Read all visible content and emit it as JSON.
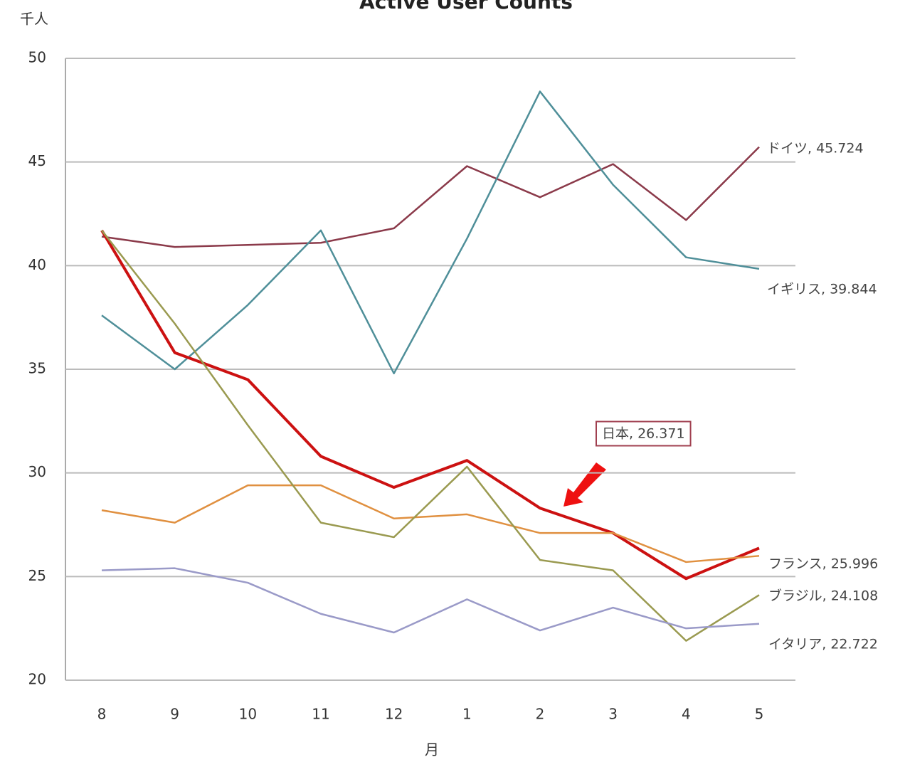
{
  "chart_data": {
    "type": "line",
    "title": "Active User Counts",
    "y_label": "千人",
    "x_label": "月",
    "categories": [
      "8",
      "9",
      "10",
      "11",
      "12",
      "1",
      "2",
      "3",
      "4",
      "5"
    ],
    "ylim": [
      20,
      50
    ],
    "yticks": [
      20,
      25,
      30,
      35,
      40,
      45,
      50
    ],
    "grid": true,
    "series": [
      {
        "name": "ドイツ",
        "color": "#8b3a4a",
        "values": [
          41.4,
          40.9,
          41.0,
          41.1,
          41.8,
          44.8,
          43.3,
          44.9,
          42.2,
          45.724
        ],
        "end_label": "ドイツ, 45.724"
      },
      {
        "name": "イギリス",
        "color": "#4f8f99",
        "values": [
          37.6,
          35.0,
          38.1,
          41.7,
          34.8,
          41.3,
          48.4,
          43.9,
          40.4,
          39.844
        ],
        "end_label": "イギリス, 39.844"
      },
      {
        "name": "日本",
        "color": "#cc1111",
        "values": [
          41.7,
          35.8,
          34.5,
          30.8,
          29.3,
          30.6,
          28.3,
          27.1,
          24.9,
          26.371
        ],
        "end_label": "日本, 26.371"
      },
      {
        "name": "フランス",
        "color": "#e09040",
        "values": [
          28.2,
          27.6,
          29.4,
          29.4,
          27.8,
          28.0,
          27.1,
          27.1,
          25.7,
          25.996
        ],
        "end_label": "フランス, 25.996"
      },
      {
        "name": "ブラジル",
        "color": "#9a9a50",
        "values": [
          41.7,
          37.2,
          32.3,
          27.6,
          26.9,
          30.3,
          25.8,
          25.3,
          21.9,
          24.108
        ],
        "end_label": "ブラジル, 24.108"
      },
      {
        "name": "イタリア",
        "color": "#9a9ac8",
        "values": [
          25.3,
          25.4,
          24.7,
          23.2,
          22.3,
          23.9,
          22.4,
          23.5,
          22.5,
          22.722
        ],
        "end_label": "イタリア, 22.722"
      }
    ]
  }
}
